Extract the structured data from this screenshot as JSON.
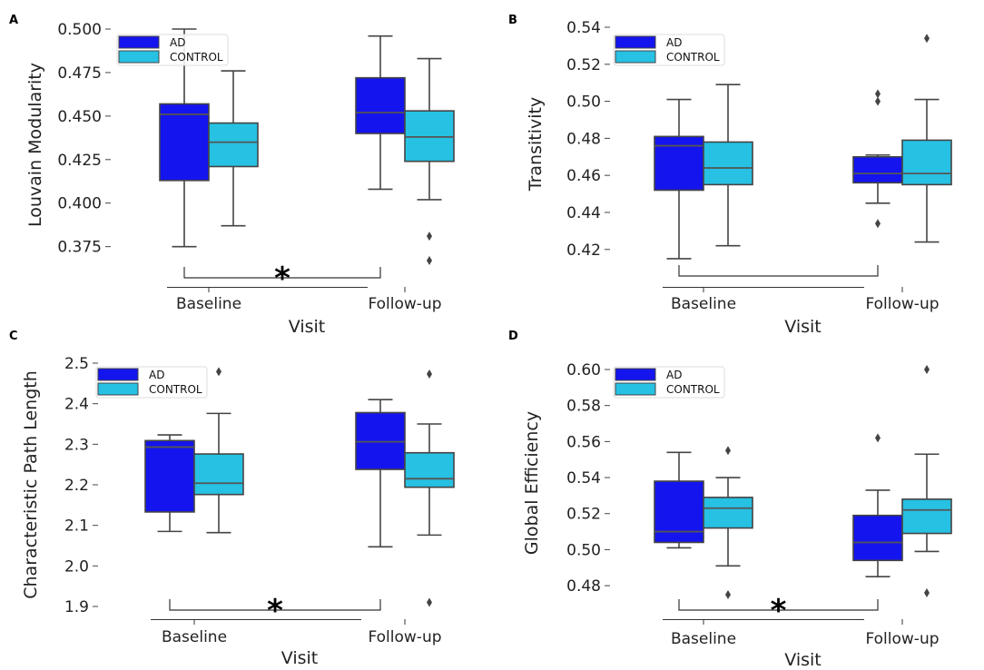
{
  "figure": {
    "x_axis_label": "Visit",
    "legend_entries": [
      "AD",
      "CONTROL"
    ]
  },
  "chart_data": [
    {
      "panel": "A",
      "type": "box",
      "ylabel": "Louvain Modularity",
      "xlabel": "Visit",
      "categories": [
        "Baseline",
        "Follow-up"
      ],
      "ylim": [
        0.367,
        0.5
      ],
      "yticks": [
        0.375,
        0.4,
        0.425,
        0.45,
        0.475,
        0.5
      ],
      "ytick_labels": [
        "0.375",
        "0.400",
        "0.425",
        "0.450",
        "0.475",
        "0.500"
      ],
      "series": [
        {
          "name": "AD",
          "color": "#1414ee",
          "boxes": [
            {
              "category": "Baseline",
              "whislo": 0.375,
              "q1": 0.413,
              "med": 0.451,
              "q3": 0.457,
              "whishi": 0.5,
              "fliers": []
            },
            {
              "category": "Follow-up",
              "whislo": 0.408,
              "q1": 0.44,
              "med": 0.452,
              "q3": 0.472,
              "whishi": 0.496,
              "fliers": []
            }
          ]
        },
        {
          "name": "CONTROL",
          "color": "#26c1e3",
          "boxes": [
            {
              "category": "Baseline",
              "whislo": 0.387,
              "q1": 0.421,
              "med": 0.435,
              "q3": 0.446,
              "whishi": 0.476,
              "fliers": []
            },
            {
              "category": "Follow-up",
              "whislo": 0.402,
              "q1": 0.424,
              "med": 0.438,
              "q3": 0.453,
              "whishi": 0.483,
              "fliers": [
                0.381,
                0.367
              ]
            }
          ]
        }
      ],
      "significance": {
        "from": "AD Baseline",
        "to": "AD Follow-up",
        "bracket_y": 0.367,
        "label": "*"
      },
      "legend_position": "top-left"
    },
    {
      "panel": "B",
      "type": "box",
      "ylabel": "Transitivity",
      "xlabel": "Visit",
      "categories": [
        "Baseline",
        "Follow-up"
      ],
      "ylim": [
        0.414,
        0.54
      ],
      "yticks": [
        0.42,
        0.44,
        0.46,
        0.48,
        0.5,
        0.52,
        0.54
      ],
      "ytick_labels": [
        "0.42",
        "0.44",
        "0.46",
        "0.48",
        "0.50",
        "0.52",
        "0.54"
      ],
      "series": [
        {
          "name": "AD",
          "color": "#1414ee",
          "boxes": [
            {
              "category": "Baseline",
              "whislo": 0.415,
              "q1": 0.452,
              "med": 0.476,
              "q3": 0.481,
              "whishi": 0.501,
              "fliers": []
            },
            {
              "category": "Follow-up",
              "whislo": 0.445,
              "q1": 0.456,
              "med": 0.461,
              "q3": 0.47,
              "whishi": 0.471,
              "fliers": [
                0.504,
                0.5,
                0.434
              ]
            }
          ]
        },
        {
          "name": "CONTROL",
          "color": "#26c1e3",
          "boxes": [
            {
              "category": "Baseline",
              "whislo": 0.422,
              "q1": 0.455,
              "med": 0.464,
              "q3": 0.478,
              "whishi": 0.509,
              "fliers": []
            },
            {
              "category": "Follow-up",
              "whislo": 0.424,
              "q1": 0.455,
              "med": 0.461,
              "q3": 0.479,
              "whishi": 0.501,
              "fliers": [
                0.534
              ]
            }
          ]
        }
      ],
      "significance": {
        "from": "AD Baseline",
        "to": "AD Follow-up",
        "bracket_y": 0.4125,
        "label": ""
      },
      "legend_position": "top-left"
    },
    {
      "panel": "C",
      "type": "box",
      "ylabel": "Characteristic Path Length",
      "xlabel": "Visit",
      "categories": [
        "Baseline",
        "Follow-up"
      ],
      "ylim": [
        1.9,
        2.5
      ],
      "yticks": [
        1.9,
        2.0,
        2.1,
        2.2,
        2.3,
        2.4,
        2.5
      ],
      "ytick_labels": [
        "1.9",
        "2.0",
        "2.1",
        "2.2",
        "2.3",
        "2.4",
        "2.5"
      ],
      "series": [
        {
          "name": "AD",
          "color": "#1414ee",
          "boxes": [
            {
              "category": "Baseline",
              "whislo": 2.085,
              "q1": 2.133,
              "med": 2.293,
              "q3": 2.309,
              "whishi": 2.323,
              "fliers": []
            },
            {
              "category": "Follow-up",
              "whislo": 2.047,
              "q1": 2.238,
              "med": 2.306,
              "q3": 2.378,
              "whishi": 2.41,
              "fliers": []
            }
          ]
        },
        {
          "name": "CONTROL",
          "color": "#26c1e3",
          "boxes": [
            {
              "category": "Baseline",
              "whislo": 2.082,
              "q1": 2.176,
              "med": 2.204,
              "q3": 2.276,
              "whishi": 2.376,
              "fliers": [
                2.479
              ]
            },
            {
              "category": "Follow-up",
              "whislo": 2.076,
              "q1": 2.194,
              "med": 2.215,
              "q3": 2.279,
              "whishi": 2.35,
              "fliers": [
                2.473,
                1.91
              ]
            }
          ]
        }
      ],
      "significance": {
        "from": "AD Baseline",
        "to": "AD Follow-up",
        "bracket_y": 1.99,
        "label": "*"
      },
      "legend_position": "top-left"
    },
    {
      "panel": "D",
      "type": "box",
      "ylabel": "Global Efficiency",
      "xlabel": "Visit",
      "categories": [
        "Baseline",
        "Follow-up"
      ],
      "ylim": [
        0.474,
        0.6
      ],
      "yticks": [
        0.48,
        0.5,
        0.52,
        0.54,
        0.56,
        0.58,
        0.6
      ],
      "ytick_labels": [
        "0.48",
        "0.50",
        "0.52",
        "0.54",
        "0.56",
        "0.58",
        "0.60"
      ],
      "series": [
        {
          "name": "AD",
          "color": "#1414ee",
          "boxes": [
            {
              "category": "Baseline",
              "whislo": 0.501,
              "q1": 0.504,
              "med": 0.51,
              "q3": 0.538,
              "whishi": 0.554,
              "fliers": []
            },
            {
              "category": "Follow-up",
              "whislo": 0.485,
              "q1": 0.494,
              "med": 0.504,
              "q3": 0.519,
              "whishi": 0.533,
              "fliers": [
                0.562
              ]
            }
          ]
        },
        {
          "name": "CONTROL",
          "color": "#26c1e3",
          "boxes": [
            {
              "category": "Baseline",
              "whislo": 0.491,
              "q1": 0.512,
              "med": 0.523,
              "q3": 0.529,
              "whishi": 0.54,
              "fliers": [
                0.555,
                0.475
              ]
            },
            {
              "category": "Follow-up",
              "whislo": 0.499,
              "q1": 0.509,
              "med": 0.522,
              "q3": 0.528,
              "whishi": 0.553,
              "fliers": [
                0.6,
                0.476
              ]
            }
          ]
        }
      ],
      "significance": {
        "from": "AD Baseline",
        "to": "AD Follow-up",
        "bracket_y": 0.483,
        "label": "*"
      },
      "legend_position": "top-left"
    }
  ]
}
